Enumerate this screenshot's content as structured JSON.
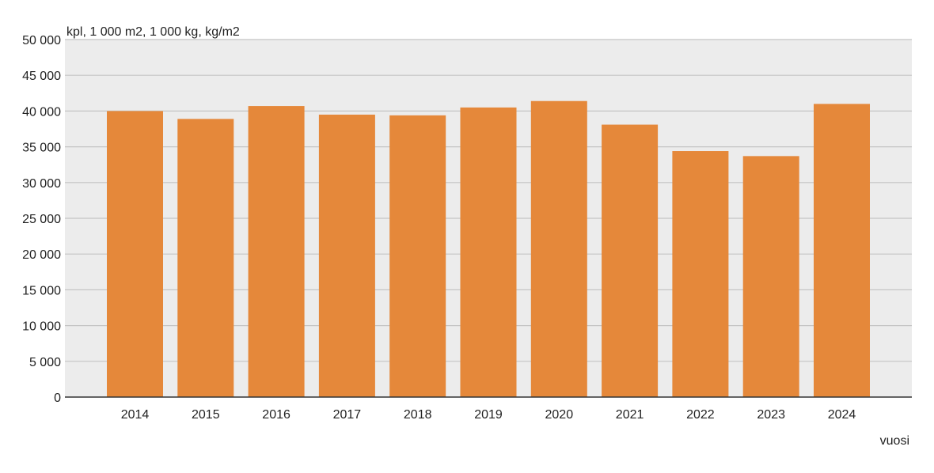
{
  "chart_data": {
    "type": "bar",
    "title": "",
    "ylabel": "kpl, 1 000 m2, 1 000 kg, kg/m2",
    "xlabel": "vuosi",
    "categories": [
      "2014",
      "2015",
      "2016",
      "2017",
      "2018",
      "2019",
      "2020",
      "2021",
      "2022",
      "2023",
      "2024"
    ],
    "series": [
      {
        "values": [
          40000,
          38900,
          40700,
          39500,
          39400,
          40500,
          41400,
          38100,
          34400,
          33700,
          41000
        ]
      }
    ],
    "ylim": [
      0,
      50000
    ],
    "yticks": [
      0,
      5000,
      10000,
      15000,
      20000,
      25000,
      30000,
      35000,
      40000,
      45000,
      50000
    ],
    "ytick_labels": [
      "0",
      "5 000",
      "10 000",
      "15 000",
      "20 000",
      "25 000",
      "30 000",
      "35 000",
      "40 000",
      "45 000",
      "50 000"
    ],
    "grid": true,
    "legend": "none",
    "colors": {
      "bar": "#e5883a",
      "plot_background": "#ececec",
      "gridline": "#c4c4c4",
      "axis": "#333333",
      "text": "#222222"
    }
  }
}
